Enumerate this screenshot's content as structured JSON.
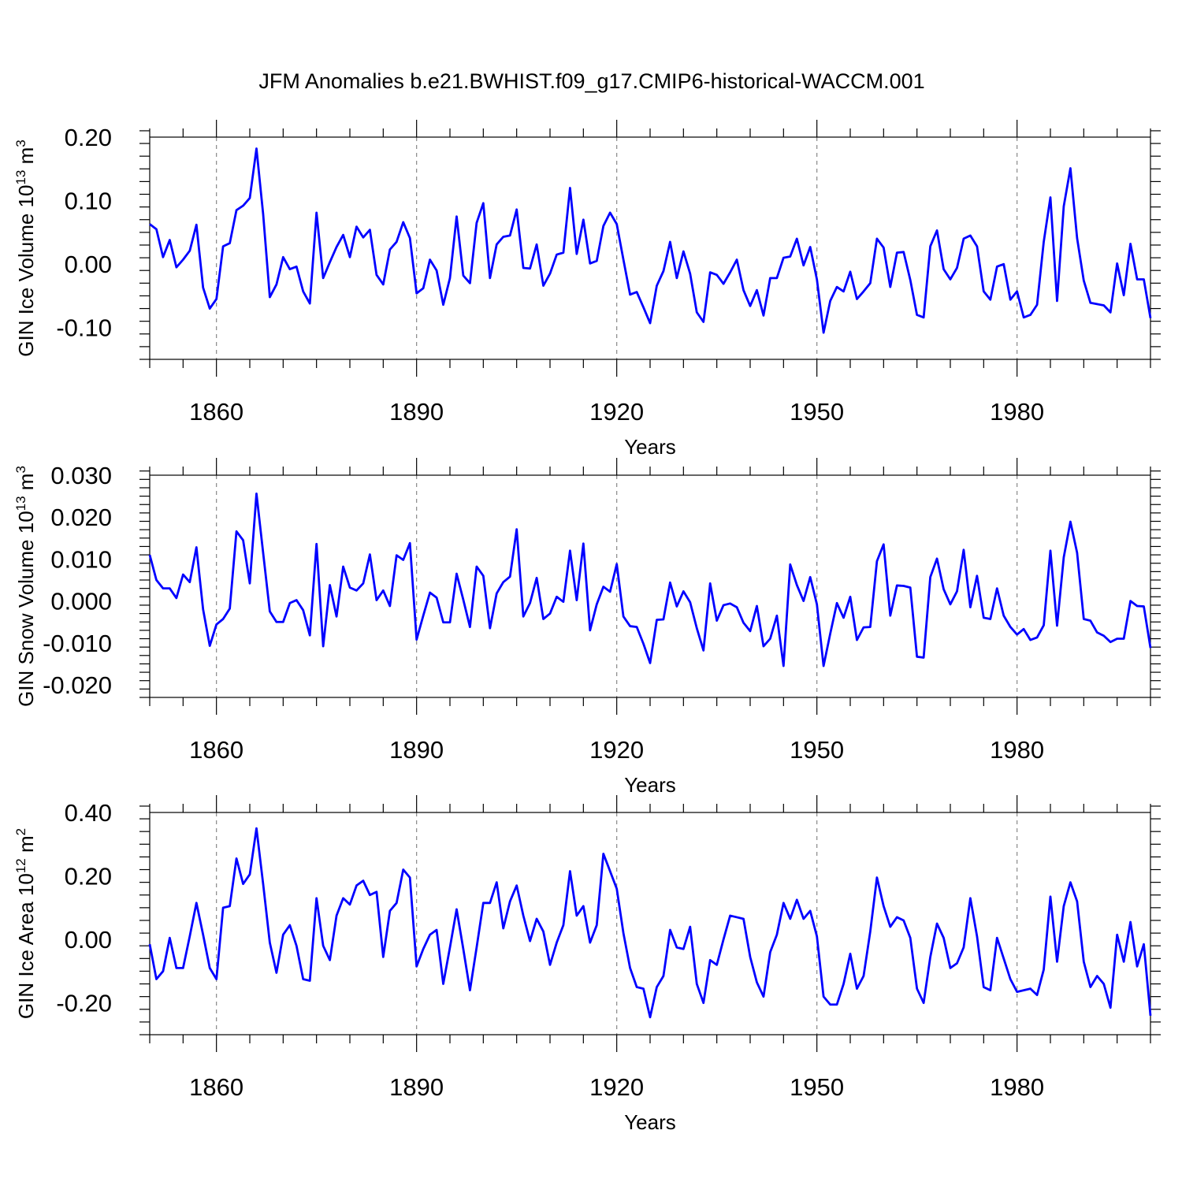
{
  "title": "JFM Anomalies b.e21.BWHIST.f09_g17.CMIP6-historical-WACCM.001",
  "colors": {
    "line": "#0000ff"
  },
  "chart_data": [
    {
      "type": "line",
      "xlabel": "Years",
      "ylabel": "GIN Ice Volume 10",
      "ylabel_exp1": "13",
      "ylabel_unit": " m",
      "ylabel_exp2": "3",
      "xlim": [
        1850,
        2000
      ],
      "ylim": [
        -0.15,
        0.2
      ],
      "yticks": [
        -0.1,
        0.0,
        0.1,
        0.2
      ],
      "ytick_labels": [
        "-0.10",
        "0.00",
        "0.10",
        "0.20"
      ],
      "ytick_minor_step": 0.02,
      "xticks": [
        1860,
        1890,
        1920,
        1950,
        1980
      ],
      "xtick_labels": [
        "1860",
        "1890",
        "1920",
        "1950",
        "1980"
      ],
      "grid": "vertical dashed",
      "series": [
        {
          "name": "GIN Ice Volume",
          "x_start": 1850,
          "values": [
            0.063,
            0.055,
            0.011,
            0.038,
            -0.005,
            0.007,
            0.021,
            0.062,
            -0.037,
            -0.07,
            -0.055,
            0.028,
            0.033,
            0.085,
            0.092,
            0.104,
            0.182,
            0.079,
            -0.052,
            -0.032,
            0.011,
            -0.008,
            -0.004,
            -0.043,
            -0.062,
            0.081,
            -0.022,
            0.003,
            0.027,
            0.046,
            0.011,
            0.059,
            0.042,
            0.054,
            -0.017,
            -0.032,
            0.023,
            0.035,
            0.066,
            0.041,
            -0.046,
            -0.038,
            0.007,
            -0.01,
            -0.064,
            -0.022,
            0.075,
            -0.018,
            -0.03,
            0.065,
            0.096,
            -0.022,
            0.031,
            0.043,
            0.045,
            0.086,
            -0.006,
            -0.007,
            0.031,
            -0.034,
            -0.015,
            0.015,
            0.018,
            0.12,
            0.016,
            0.07,
            0.001,
            0.005,
            0.06,
            0.081,
            0.063,
            0.007,
            -0.048,
            -0.044,
            -0.068,
            -0.093,
            -0.034,
            -0.011,
            0.035,
            -0.022,
            0.02,
            -0.015,
            -0.076,
            -0.091,
            -0.013,
            -0.017,
            -0.031,
            -0.013,
            0.007,
            -0.041,
            -0.066,
            -0.041,
            -0.081,
            -0.022,
            -0.022,
            0.01,
            0.012,
            0.04,
            -0.002,
            0.027,
            -0.024,
            -0.108,
            -0.058,
            -0.036,
            -0.043,
            -0.012,
            -0.055,
            -0.043,
            -0.03,
            0.04,
            0.026,
            -0.036,
            0.018,
            0.019,
            -0.025,
            -0.08,
            -0.084,
            0.028,
            0.053,
            -0.008,
            -0.024,
            -0.006,
            0.04,
            0.045,
            0.028,
            -0.043,
            -0.056,
            -0.004,
            0.0,
            -0.056,
            -0.043,
            -0.084,
            -0.08,
            -0.064,
            0.035,
            0.105,
            -0.058,
            0.091,
            0.151,
            0.041,
            -0.026,
            -0.061,
            -0.063,
            -0.065,
            -0.076,
            0.001,
            -0.049,
            0.032,
            -0.024,
            -0.024,
            -0.085
          ]
        }
      ]
    },
    {
      "type": "line",
      "xlabel": "Years",
      "ylabel": "GIN Snow Volume 10",
      "ylabel_exp1": "13",
      "ylabel_unit": " m",
      "ylabel_exp2": "3",
      "xlim": [
        1850,
        2000
      ],
      "ylim": [
        -0.023,
        0.03
      ],
      "yticks": [
        -0.02,
        -0.01,
        0.0,
        0.01,
        0.02,
        0.03
      ],
      "ytick_labels": [
        "-0.020",
        "-0.010",
        "0.000",
        "0.010",
        "0.020",
        "0.030"
      ],
      "ytick_minor_step": 0.002,
      "xticks": [
        1860,
        1890,
        1920,
        1950,
        1980
      ],
      "xtick_labels": [
        "1860",
        "1890",
        "1920",
        "1950",
        "1980"
      ],
      "grid": "vertical dashed",
      "series": [
        {
          "name": "GIN Snow Volume",
          "x_start": 1850,
          "values": [
            0.011,
            0.005,
            0.003,
            0.003,
            0.0007,
            0.0063,
            0.0045,
            0.0128,
            -0.002,
            -0.0107,
            -0.0056,
            -0.0043,
            -0.0018,
            0.0166,
            0.0145,
            0.0042,
            0.0256,
            0.0115,
            -0.0025,
            -0.005,
            -0.005,
            -0.0005,
            0.0002,
            -0.0022,
            -0.0082,
            0.0136,
            -0.0108,
            0.0038,
            -0.0037,
            0.0082,
            0.0032,
            0.0025,
            0.0042,
            0.0111,
            0.0002,
            0.0025,
            -0.0012,
            0.0109,
            0.0098,
            0.0138,
            -0.0092,
            -0.0035,
            0.002,
            0.0008,
            -0.0051,
            -0.0051,
            0.0065,
            0.0003,
            -0.0062,
            0.0082,
            0.006,
            -0.0065,
            0.0018,
            0.0045,
            0.0058,
            0.0171,
            -0.0037,
            -0.0005,
            0.0055,
            -0.0043,
            -0.003,
            0.001,
            -0.0002,
            0.012,
            0.0002,
            0.0137,
            -0.007,
            -0.0008,
            0.0034,
            0.0022,
            0.0088,
            -0.0037,
            -0.006,
            -0.0062,
            -0.0102,
            -0.0148,
            -0.0045,
            -0.0044,
            0.0044,
            -0.0013,
            0.0023,
            -0.0003,
            -0.0065,
            -0.0118,
            0.0042,
            -0.0047,
            -0.001,
            -0.0006,
            -0.0015,
            -0.0052,
            -0.0072,
            -0.0012,
            -0.0108,
            -0.009,
            -0.0035,
            -0.0155,
            0.0087,
            0.0038,
            0.0,
            0.0057,
            -0.0008,
            -0.0155,
            -0.0078,
            -0.0005,
            -0.004,
            0.001,
            -0.0093,
            -0.0063,
            -0.0062,
            0.0095,
            0.0135,
            -0.0035,
            0.0037,
            0.0036,
            0.0032,
            -0.0133,
            -0.0135,
            0.0057,
            0.0101,
            0.0028,
            -0.0008,
            0.0023,
            0.0122,
            -0.0015,
            0.006,
            -0.004,
            -0.0043,
            0.003,
            -0.0035,
            -0.0062,
            -0.008,
            -0.0067,
            -0.0093,
            -0.0087,
            -0.0058,
            0.012,
            -0.0059,
            0.0104,
            0.0189,
            0.0115,
            -0.0043,
            -0.0047,
            -0.0075,
            -0.0083,
            -0.0098,
            -0.009,
            -0.009,
            0.0,
            -0.0012,
            -0.0013,
            -0.0112
          ]
        }
      ]
    },
    {
      "type": "line",
      "xlabel": "Years",
      "ylabel": "GIN Ice Area 10",
      "ylabel_exp1": "12",
      "ylabel_unit": " m",
      "ylabel_exp2": "2",
      "xlim": [
        1850,
        2000
      ],
      "ylim": [
        -0.3,
        0.4
      ],
      "yticks": [
        -0.2,
        0.0,
        0.2,
        0.4
      ],
      "ytick_labels": [
        "-0.20",
        "0.00",
        "0.20",
        "0.40"
      ],
      "ytick_minor_step": 0.04,
      "xticks": [
        1860,
        1890,
        1920,
        1950,
        1980
      ],
      "xtick_labels": [
        "1860",
        "1890",
        "1920",
        "1950",
        "1980"
      ],
      "grid": "vertical dashed",
      "series": [
        {
          "name": "GIN Ice Area",
          "x_start": 1850,
          "values": [
            -0.015,
            -0.125,
            -0.1,
            0.005,
            -0.09,
            -0.09,
            0.01,
            0.115,
            0.015,
            -0.09,
            -0.125,
            0.1,
            0.105,
            0.255,
            0.175,
            0.205,
            0.35,
            0.175,
            -0.01,
            -0.105,
            0.015,
            0.045,
            -0.02,
            -0.125,
            -0.13,
            0.13,
            -0.02,
            -0.065,
            0.075,
            0.13,
            0.11,
            0.17,
            0.185,
            0.14,
            0.15,
            -0.055,
            0.09,
            0.115,
            0.22,
            0.195,
            -0.085,
            -0.03,
            0.015,
            0.03,
            -0.14,
            -0.025,
            0.095,
            -0.03,
            -0.16,
            -0.025,
            0.115,
            0.115,
            0.18,
            0.035,
            0.12,
            0.17,
            0.075,
            -0.005,
            0.065,
            0.025,
            -0.08,
            -0.01,
            0.045,
            0.215,
            0.075,
            0.105,
            -0.01,
            0.045,
            0.27,
            0.215,
            0.16,
            0.02,
            -0.09,
            -0.15,
            -0.155,
            -0.245,
            -0.15,
            -0.115,
            0.03,
            -0.025,
            -0.03,
            0.04,
            -0.14,
            -0.2,
            -0.065,
            -0.08,
            0.0,
            0.075,
            0.07,
            0.065,
            -0.055,
            -0.135,
            -0.18,
            -0.04,
            0.015,
            0.115,
            0.065,
            0.125,
            0.065,
            0.09,
            0.01,
            -0.18,
            -0.205,
            -0.205,
            -0.14,
            -0.045,
            -0.155,
            -0.115,
            0.025,
            0.195,
            0.105,
            0.04,
            0.07,
            0.06,
            0.005,
            -0.155,
            -0.2,
            -0.055,
            0.05,
            0.005,
            -0.09,
            -0.075,
            -0.025,
            0.13,
            0.01,
            -0.15,
            -0.16,
            0.005,
            -0.06,
            -0.125,
            -0.165,
            -0.16,
            -0.155,
            -0.175,
            -0.095,
            0.135,
            -0.07,
            0.105,
            0.18,
            0.12,
            -0.07,
            -0.15,
            -0.115,
            -0.14,
            -0.215,
            0.015,
            -0.07,
            0.055,
            -0.085,
            -0.015,
            -0.24
          ]
        }
      ]
    }
  ]
}
